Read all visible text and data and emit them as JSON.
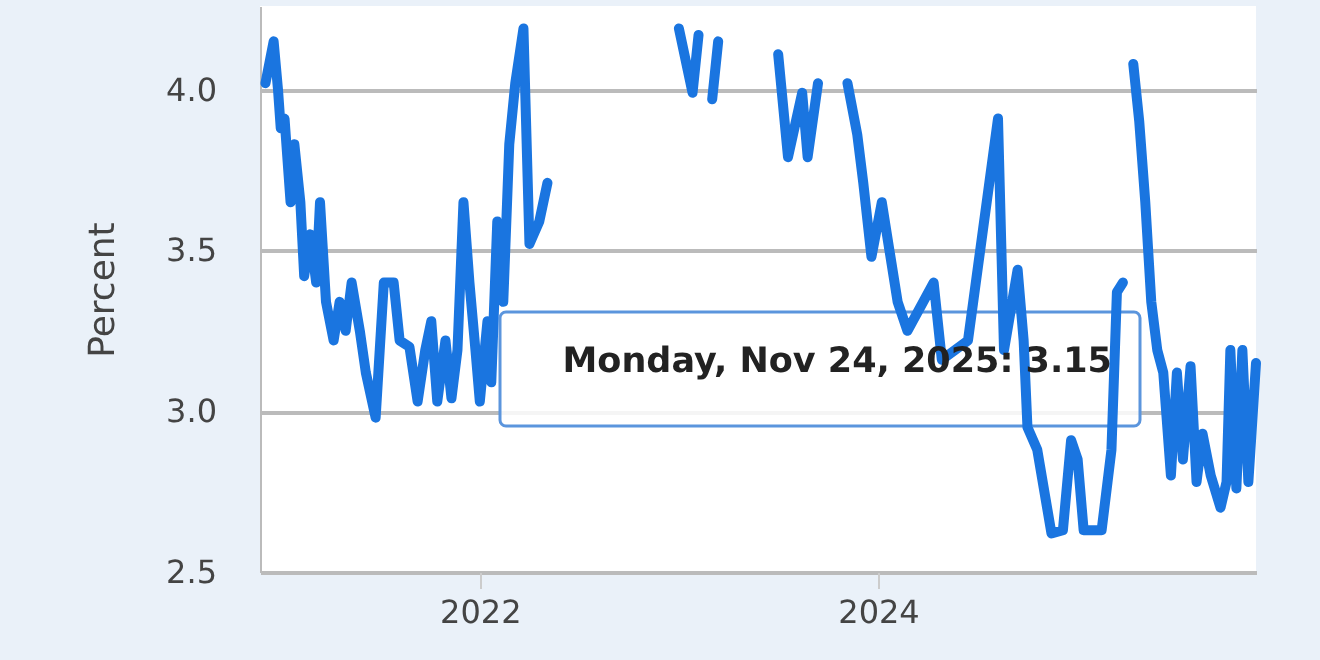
{
  "chart_data": {
    "type": "line",
    "ylabel": "Percent",
    "x": [
      "2020-12-04",
      "2020-12-19",
      "2020-12-27",
      "2021-01-01",
      "2021-01-08",
      "2021-01-19",
      "2021-01-26",
      "2021-02-06",
      "2021-02-13",
      "2021-02-24",
      "2021-03-07",
      "2021-03-14",
      "2021-03-25",
      "2021-04-08",
      "2021-04-19",
      "2021-04-30",
      "2021-05-11",
      "2021-05-26",
      "2021-06-06",
      "2021-06-24",
      "2021-07-09",
      "2021-07-27",
      "2021-08-07",
      "2021-08-25",
      "2021-09-09",
      "2021-09-23",
      "2021-10-04",
      "2021-10-15",
      "2021-10-30",
      "2021-11-10",
      "2021-11-21",
      "2021-12-02",
      "2021-12-13",
      "2021-12-24",
      "2022-01-01",
      "2022-01-15",
      "2022-01-22",
      "2022-02-02",
      "2022-02-13",
      "2022-02-24",
      "2022-03-07",
      "2022-03-22",
      "2022-04-02",
      "2022-04-20",
      "2022-05-05",
      "2022-09-13",
      "2023-01-01",
      "2023-01-26",
      "2023-02-06",
      "2023-02-13",
      "2023-03-03",
      "2023-03-14",
      "2023-04-20",
      "2023-06-06",
      "2023-07-02",
      "2023-07-20",
      "2023-08-15",
      "2023-08-25",
      "2023-09-13",
      "2023-10-01",
      "2023-10-27",
      "2023-11-06",
      "2023-11-24",
      "2023-12-05",
      "2023-12-20",
      "2024-01-08",
      "2024-01-22",
      "2024-02-06",
      "2024-02-24",
      "2024-04-12",
      "2024-04-27",
      "2024-06-14",
      "2024-08-08",
      "2024-08-19",
      "2024-09-13",
      "2024-09-24",
      "2024-10-01",
      "2024-10-19",
      "2024-11-14",
      "2024-12-05",
      "2024-12-20",
      "2025-01-01",
      "2025-01-12",
      "2025-02-14",
      "2025-03-04",
      "2025-03-14",
      "2025-03-25",
      "2025-04-02",
      "2025-04-13",
      "2025-04-24",
      "2025-05-05",
      "2025-05-16",
      "2025-05-27",
      "2025-06-07",
      "2025-06-21",
      "2025-07-02",
      "2025-07-13",
      "2025-07-27",
      "2025-08-07",
      "2025-08-18",
      "2025-09-02",
      "2025-09-20",
      "2025-10-01",
      "2025-10-08",
      "2025-10-19",
      "2025-10-30",
      "2025-11-10",
      "2025-11-24"
    ],
    "series": [
      {
        "color": "#1a75e0",
        "values": [
          4.02,
          4.15,
          4.0,
          3.88,
          3.91,
          3.65,
          3.83,
          3.65,
          3.42,
          3.55,
          3.4,
          3.65,
          3.34,
          3.22,
          3.34,
          3.25,
          3.4,
          3.25,
          3.12,
          2.98,
          3.4,
          3.4,
          3.22,
          3.2,
          3.03,
          3.19,
          3.28,
          3.03,
          3.22,
          3.04,
          3.19,
          3.65,
          3.4,
          3.19,
          3.03,
          3.28,
          3.09,
          3.59,
          3.34,
          3.83,
          4.02,
          4.19,
          3.52,
          3.59,
          3.71,
          null,
          4.19,
          3.99,
          4.17,
          null,
          3.97,
          4.15,
          null,
          null,
          4.11,
          3.79,
          3.99,
          3.79,
          4.02,
          null,
          null,
          4.02,
          3.86,
          3.71,
          3.48,
          3.65,
          3.5,
          3.34,
          3.25,
          3.4,
          3.16,
          3.22,
          3.91,
          3.19,
          3.44,
          3.22,
          2.95,
          2.88,
          2.62,
          2.63,
          2.91,
          2.85,
          2.63,
          2.63,
          2.88,
          3.37,
          3.4,
          null,
          4.08,
          3.9,
          3.65,
          3.34,
          3.19,
          3.12,
          2.8,
          3.12,
          2.85,
          3.14,
          2.78,
          2.93,
          2.8,
          2.7,
          2.78,
          3.19,
          2.76,
          3.19,
          2.78,
          3.15
        ]
      }
    ],
    "xlim": [
      "2020-11-24",
      "2025-11-24"
    ],
    "xticks": [
      {
        "value": "2022",
        "label": "2022"
      },
      {
        "value": "2024",
        "label": "2024"
      }
    ],
    "ylim": [
      2.5,
      4.26
    ],
    "yticks": [
      2.5,
      {
        "value": 3,
        "label": "3.0"
      },
      3.5,
      {
        "value": 4,
        "label": "4.0"
      }
    ],
    "grid": "y",
    "marker": "none",
    "line_style": "solid",
    "annotations": [
      "Monday, Nov 24, 2025:  3.15"
    ]
  }
}
